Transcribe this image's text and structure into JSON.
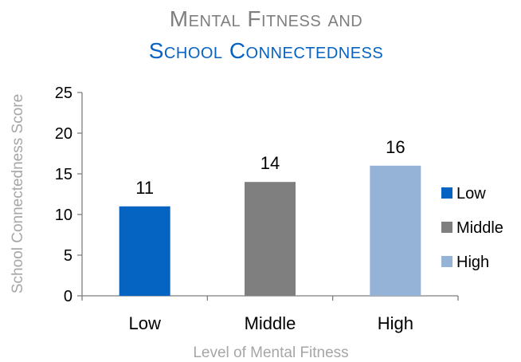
{
  "chart_data": {
    "type": "bar",
    "title": {
      "line1": "Mental Fitness and",
      "line2": "School Connectedness"
    },
    "xlabel": "Level of Mental Fitness",
    "ylabel": "School Connectedness Score",
    "ylim": [
      0,
      25
    ],
    "yticks": [
      "0",
      "5",
      "10",
      "15",
      "20",
      "25"
    ],
    "categories": [
      "Low",
      "Middle",
      "High"
    ],
    "values": [
      11,
      14,
      16
    ],
    "data_labels": [
      "11",
      "14",
      "16"
    ],
    "colors": [
      "#0563C1",
      "#7F7F7F",
      "#95B3D7"
    ],
    "legend": {
      "position": "right",
      "entries": [
        "Low",
        "Middle",
        "High"
      ]
    },
    "grid": false
  },
  "style": {
    "title_line1_color": "#7F7F7F",
    "title_line2_color": "#0563C1",
    "axis_color": "#7F7F7F",
    "text_color": "#000000",
    "axis_title_color": "#A6A6A6"
  }
}
